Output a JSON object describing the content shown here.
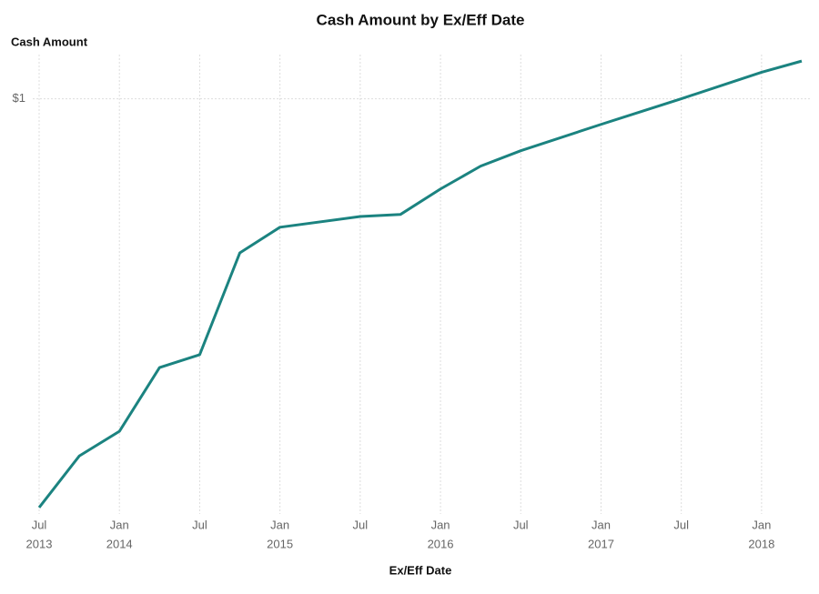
{
  "chart_data": {
    "type": "line",
    "title": "Cash Amount by Ex/Eff Date",
    "y_label": "Cash Amount",
    "x_label": "Ex/Eff Date",
    "log_y": true,
    "grid": true,
    "x": [
      "2013-07",
      "2013-10",
      "2014-01",
      "2014-04",
      "2014-07",
      "2014-10",
      "2015-01",
      "2015-07",
      "2015-10",
      "2016-01",
      "2016-04",
      "2016-07",
      "2017-01",
      "2017-07",
      "2018-01",
      "2018-04"
    ],
    "series": [
      {
        "name": "Cash Amount",
        "color": "#1b8380",
        "values": [
          0.2,
          0.245,
          0.27,
          0.347,
          0.365,
          0.545,
          0.603,
          0.629,
          0.634,
          0.701,
          0.767,
          0.815,
          0.904,
          1.0,
          1.11,
          1.16
        ]
      }
    ],
    "xlim": [
      "2013-07",
      "2018-04"
    ],
    "ylim": [
      0.195,
      1.19
    ],
    "yticks": [
      {
        "value": 1,
        "label": "$1"
      }
    ],
    "xticks": [
      {
        "value": "2013-07",
        "label": [
          "Jul",
          "2013"
        ]
      },
      {
        "value": "2014-01",
        "label": [
          "Jan",
          "2014"
        ]
      },
      {
        "value": "2014-07",
        "label": [
          "Jul"
        ]
      },
      {
        "value": "2015-01",
        "label": [
          "Jan",
          "2015"
        ]
      },
      {
        "value": "2015-07",
        "label": [
          "Jul"
        ]
      },
      {
        "value": "2016-01",
        "label": [
          "Jan",
          "2016"
        ]
      },
      {
        "value": "2016-07",
        "label": [
          "Jul"
        ]
      },
      {
        "value": "2017-01",
        "label": [
          "Jan",
          "2017"
        ]
      },
      {
        "value": "2017-07",
        "label": [
          "Jul"
        ]
      },
      {
        "value": "2018-01",
        "label": [
          "Jan",
          "2018"
        ]
      }
    ]
  }
}
